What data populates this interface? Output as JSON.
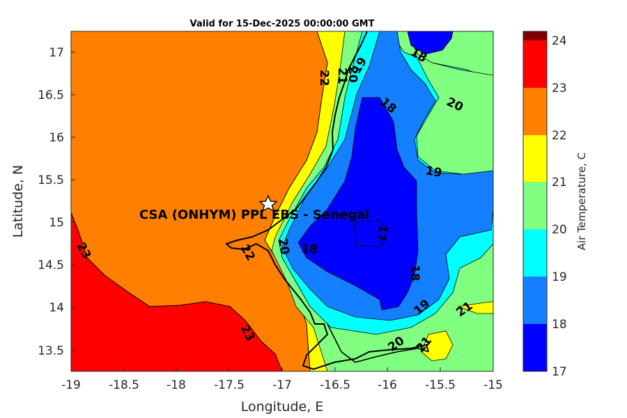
{
  "title": "Valid for 15-Dec-2025 00:00:00 GMT",
  "xaxis": {
    "label": "Longitude, E",
    "range": [
      -19,
      -15
    ],
    "ticks": [
      "-19",
      "-18.5",
      "-18",
      "-17.5",
      "-17",
      "-16.5",
      "-16",
      "-15.5",
      "-15"
    ]
  },
  "yaxis": {
    "label": "Latitude, N",
    "range": [
      13.25,
      17.25
    ],
    "ticks": [
      "13.5",
      "14",
      "14.5",
      "15",
      "15.5",
      "16",
      "16.5",
      "17"
    ]
  },
  "colorbar": {
    "label": "Air Temperature, C",
    "ticks": [
      "17",
      "18",
      "19",
      "20",
      "21",
      "22",
      "23",
      "24"
    ],
    "levels": [
      {
        "from": 17,
        "to": 18,
        "color": "#0000ff"
      },
      {
        "from": 18,
        "to": 19,
        "color": "#1480ff"
      },
      {
        "from": 19,
        "to": 20,
        "color": "#00ffff"
      },
      {
        "from": 20,
        "to": 21,
        "color": "#80ff80"
      },
      {
        "from": 21,
        "to": 22,
        "color": "#ffff00"
      },
      {
        "from": 22,
        "to": 23,
        "color": "#ff8000"
      },
      {
        "from": 23,
        "to": 24,
        "color": "#ff0000"
      },
      {
        "from": 24,
        "to": 25,
        "color": "#800000"
      }
    ]
  },
  "site": {
    "name": "CSA (ONHYM) PPL EBS  - Senegal",
    "lon": -17.12,
    "lat": 15.24
  },
  "contour_labels": [
    "23",
    "23",
    "22",
    "22",
    "21",
    "20",
    "19",
    "18",
    "17",
    "18",
    "18",
    "18",
    "19",
    "19",
    "20",
    "20",
    "21",
    "21",
    "22",
    "21",
    "20"
  ],
  "chart_data": {
    "type": "heatmap",
    "variable": "Air Temperature, C",
    "valid_time": "15-Dec-2025 00:00:00 GMT",
    "xlabel": "Longitude, E",
    "ylabel": "Latitude, N",
    "xlim": [
      -19,
      -15
    ],
    "ylim": [
      13.25,
      17.25
    ],
    "clim": [
      17,
      24
    ],
    "contour_levels": [
      17,
      18,
      19,
      20,
      21,
      22,
      23
    ]
  }
}
